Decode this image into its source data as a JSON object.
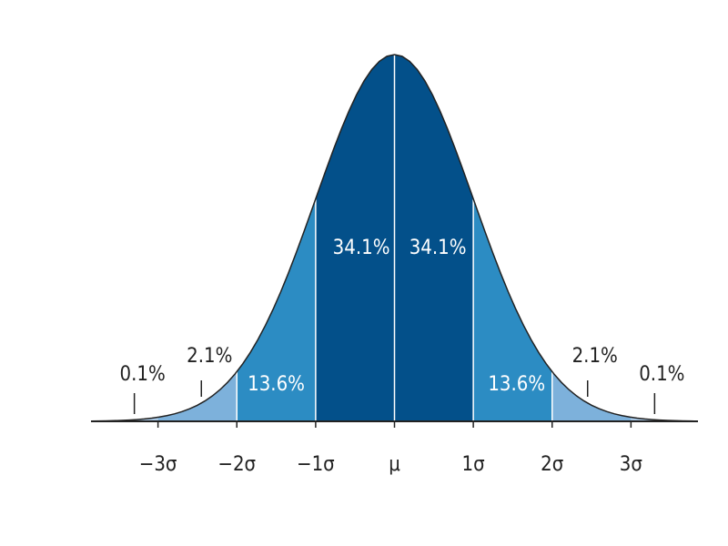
{
  "chart_data": {
    "type": "normal",
    "xlim": [
      -3.85,
      3.85
    ],
    "xticks": [
      {
        "value": -3,
        "label": "−3σ"
      },
      {
        "value": -2,
        "label": "−2σ"
      },
      {
        "value": -1,
        "label": "−1σ"
      },
      {
        "value": 0,
        "label": "μ"
      },
      {
        "value": 1,
        "label": "1σ"
      },
      {
        "value": 2,
        "label": "2σ"
      },
      {
        "value": 3,
        "label": "3σ"
      }
    ],
    "values": [
      0.1,
      2.1,
      13.6,
      34.1,
      34.1,
      13.6,
      2.1,
      0.1
    ],
    "value_labels": [
      "0.1%",
      "2.1%",
      "13.6%",
      "34.1%",
      "34.1%",
      "13.6%",
      "2.1%",
      "0.1%"
    ],
    "colors": [
      "#a9c9e6",
      "#7db1db",
      "#2c8cc3",
      "#03508a",
      "#03508a",
      "#2c8cc3",
      "#7db1db",
      "#a9c9e6"
    ]
  }
}
